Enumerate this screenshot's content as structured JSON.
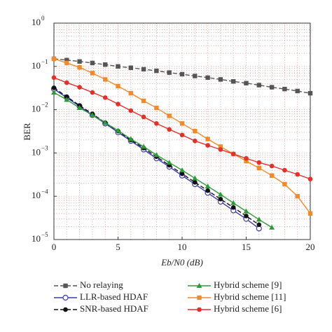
{
  "chart_data": {
    "type": "line",
    "x_label": "Eb/N0 (dB)",
    "y_label": "BER",
    "log_y": true,
    "grid": true,
    "xlim": [
      0,
      20
    ],
    "xticks": [
      0,
      5,
      10,
      15,
      20
    ],
    "ylim": [
      1e-05,
      1
    ],
    "yticks": [
      {
        "value": 1e-05,
        "label": "10",
        "superscript": "−5"
      },
      {
        "value": 0.0001,
        "label": "10",
        "superscript": "−4"
      },
      {
        "value": 0.001,
        "label": "10",
        "superscript": "−3"
      },
      {
        "value": 0.01,
        "label": "10",
        "superscript": "−2"
      },
      {
        "value": 0.1,
        "label": "10",
        "superscript": "−1"
      },
      {
        "value": 1,
        "label": "10",
        "superscript": "0"
      }
    ],
    "series": [
      {
        "name": "No relaying",
        "color": "#555555",
        "linestyle": "dashed",
        "marker": "square",
        "x": [
          0,
          1,
          2,
          3,
          4,
          5,
          6,
          7,
          8,
          9,
          10,
          11,
          12,
          13,
          14,
          15,
          16,
          17,
          18,
          19,
          20
        ],
        "values": [
          0.15,
          0.14,
          0.13,
          0.12,
          0.11,
          0.1,
          0.093,
          0.086,
          0.079,
          0.072,
          0.066,
          0.06,
          0.055,
          0.05,
          0.045,
          0.041,
          0.037,
          0.033,
          0.03,
          0.027,
          0.024
        ]
      },
      {
        "name": "LLR-based HDAF",
        "color": "#3a3aa8",
        "linestyle": "solid",
        "marker": "open-circle",
        "x": [
          0,
          1,
          2,
          3,
          4,
          5,
          6,
          7,
          8,
          9,
          10,
          11,
          12,
          13,
          14,
          15,
          16
        ],
        "values": [
          0.03,
          0.019,
          0.012,
          0.0075,
          0.0048,
          0.003,
          0.0019,
          0.0012,
          0.00075,
          0.00048,
          0.0003,
          0.00019,
          0.00012,
          7.5e-05,
          4.7e-05,
          3e-05,
          1.8e-05
        ]
      },
      {
        "name": "SNR-based HDAF",
        "color": "#111111",
        "linestyle": "dashed",
        "marker": "dot",
        "x": [
          0,
          1,
          2,
          3,
          4,
          5,
          6,
          7,
          8,
          9,
          10,
          11,
          12,
          13,
          14,
          15,
          16
        ],
        "values": [
          0.032,
          0.02,
          0.0125,
          0.008,
          0.005,
          0.0032,
          0.002,
          0.0013,
          0.00082,
          0.00052,
          0.00033,
          0.00021,
          0.000135,
          8.6e-05,
          5.5e-05,
          3.5e-05,
          2.2e-05
        ]
      },
      {
        "name": "Hybrid scheme [9]",
        "color": "#2e9b3a",
        "linestyle": "solid",
        "marker": "triangle",
        "x": [
          0,
          1,
          2,
          3,
          4,
          5,
          6,
          7,
          8,
          9,
          10,
          11,
          12,
          13,
          14,
          15,
          16,
          17
        ],
        "values": [
          0.025,
          0.017,
          0.011,
          0.0075,
          0.005,
          0.0033,
          0.0021,
          0.0014,
          0.0009,
          0.0006,
          0.0004,
          0.00026,
          0.00017,
          0.00011,
          7e-05,
          4.5e-05,
          2.9e-05,
          1.9e-05
        ]
      },
      {
        "name": "Hybrid scheme [11]",
        "color": "#f08a2c",
        "linestyle": "solid",
        "marker": "square",
        "x": [
          0,
          1,
          2,
          3,
          4,
          5,
          6,
          7,
          8,
          9,
          10,
          11,
          12,
          13,
          14,
          15,
          16,
          17,
          18,
          19,
          20
        ],
        "values": [
          0.15,
          0.12,
          0.095,
          0.07,
          0.05,
          0.035,
          0.024,
          0.016,
          0.011,
          0.0072,
          0.0048,
          0.0032,
          0.0021,
          0.0014,
          0.00095,
          0.00065,
          0.00045,
          0.0003,
          0.00019,
          0.0001,
          4e-05
        ]
      },
      {
        "name": "Hybrid scheme [6]",
        "color": "#e0312a",
        "linestyle": "solid",
        "marker": "dot",
        "x": [
          0,
          1,
          2,
          3,
          4,
          5,
          6,
          7,
          8,
          9,
          10,
          11,
          12,
          13,
          14,
          15,
          16,
          17,
          18,
          19,
          20
        ],
        "values": [
          0.055,
          0.042,
          0.033,
          0.025,
          0.019,
          0.0135,
          0.0095,
          0.0068,
          0.0048,
          0.0035,
          0.0026,
          0.0019,
          0.0015,
          0.0012,
          0.00095,
          0.00075,
          0.0006,
          0.0005,
          0.0004,
          0.00032,
          0.00025
        ]
      }
    ]
  }
}
